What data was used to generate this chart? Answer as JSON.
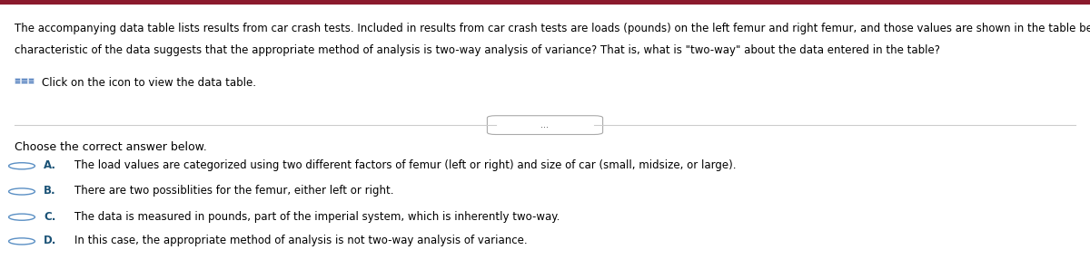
{
  "background_color": "#ffffff",
  "top_bar_color": "#8B1A2D",
  "top_bar_height": 0.018,
  "paragraph_line1": "The accompanying data table lists results from car crash tests. Included in results from car crash tests are loads (pounds) on the left femur and right femur, and those values are shown in the table below. What",
  "paragraph_line2": "characteristic of the data suggests that the appropriate method of analysis is two-way analysis of variance? That is, what is \"two-way\" about the data entered in the table?",
  "icon_text": "Click on the icon to view the data table.",
  "divider_button_text": "...",
  "choose_text": "Choose the correct answer below.",
  "answers": [
    {
      "label": "A.",
      "text": "The load values are categorized using two different factors of femur (left or right) and size of car (small, midsize, or large)."
    },
    {
      "label": "B.",
      "text": "There are two possiblities for the femur, either left or right."
    },
    {
      "label": "C.",
      "text": "The data is measured in pounds, part of the imperial system, which is inherently two-way."
    },
    {
      "label": "D.",
      "text": "In this case, the appropriate method of analysis is not two-way analysis of variance."
    }
  ],
  "label_color": "#1a5276",
  "text_color": "#000000",
  "font_size_paragraph": 8.5,
  "font_size_answers": 8.5,
  "font_size_choose": 9.0,
  "circle_color": "#5a8fc4",
  "grid_icon_color": "#3a6db5",
  "divider_color": "#cccccc",
  "pill_edge_color": "#aaaaaa",
  "pill_text_color": "#555555"
}
